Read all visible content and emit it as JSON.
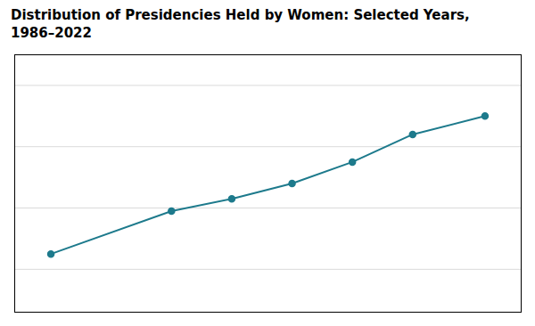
{
  "chart_data": {
    "type": "line",
    "title": "Distribution of Presidencies Held by Women: Selected Years,\n1986–2022",
    "x": [
      1986,
      1996,
      2001,
      2006,
      2011,
      2016,
      2022
    ],
    "values": [
      9.5,
      16.5,
      18.5,
      21.0,
      24.5,
      29.0,
      32.0
    ],
    "color": "#1d7a8c",
    "marker": "circle",
    "xlim": [
      1983,
      2025
    ],
    "ylim": [
      0,
      42
    ],
    "yticks": [
      7,
      17,
      27,
      37
    ],
    "grid": "y",
    "tick_labels": false
  }
}
